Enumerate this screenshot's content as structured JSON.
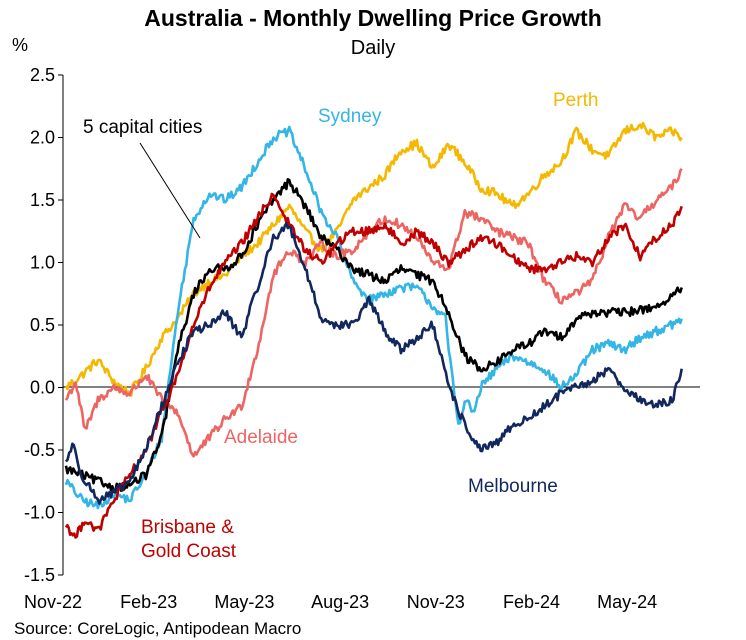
{
  "chart_data": {
    "type": "line",
    "title": "Australia - Monthly Dwelling Price Growth",
    "subtitle": "Daily",
    "ylabel": "%",
    "source": "Source: CoreLogic, Antipodean Macro",
    "ylim": [
      -1.5,
      2.5
    ],
    "yticks": [
      "2.5",
      "2.0",
      "1.5",
      "1.0",
      "0.5",
      "0.0",
      "-0.5",
      "-1.0",
      "-1.5"
    ],
    "x_ticklabels": [
      "Nov-22",
      "Feb-23",
      "May-23",
      "Aug-23",
      "Nov-23",
      "Feb-24",
      "May-24"
    ],
    "x_months": [
      "Nov-22",
      "Dec-22",
      "Jan-23",
      "Feb-23",
      "Mar-23",
      "Apr-23",
      "May-23",
      "Jun-23",
      "Jul-23",
      "Aug-23",
      "Sep-23",
      "Oct-23",
      "Nov-23",
      "Dec-23",
      "Jan-24",
      "Feb-24",
      "Mar-24",
      "Apr-24",
      "May-24",
      "Jun-24"
    ],
    "xlim_month_index": [
      0,
      19.4
    ],
    "series": [
      {
        "name": "Perth",
        "color": "#F5B800",
        "x": [
          0,
          0.5,
          1,
          1.5,
          2,
          2.5,
          3,
          3.5,
          4,
          4.5,
          5,
          5.5,
          6,
          6.5,
          7,
          7.5,
          8,
          8.5,
          9,
          9.5,
          10,
          10.5,
          11,
          11.5,
          12,
          12.5,
          13,
          13.5,
          14,
          14.5,
          15,
          15.5,
          16,
          16.5,
          17,
          17.5,
          18,
          18.5,
          19,
          19.3
        ],
        "values": [
          0.0,
          0.1,
          0.22,
          0.05,
          -0.05,
          0.15,
          0.4,
          0.55,
          0.75,
          0.85,
          0.9,
          1.05,
          1.15,
          1.3,
          1.45,
          1.25,
          1.1,
          1.25,
          1.5,
          1.6,
          1.7,
          1.9,
          1.95,
          1.75,
          1.95,
          1.8,
          1.6,
          1.55,
          1.45,
          1.55,
          1.7,
          1.8,
          2.05,
          1.9,
          1.85,
          2.05,
          2.1,
          2.0,
          2.05,
          2.0
        ]
      },
      {
        "name": "Sydney",
        "color": "#33B5E5",
        "x": [
          0,
          0.5,
          1,
          1.5,
          2,
          2.5,
          3,
          3.5,
          4,
          4.5,
          5,
          5.5,
          6,
          6.5,
          7,
          7.5,
          8,
          8.5,
          9,
          9.5,
          10,
          10.5,
          11,
          11.5,
          11.9,
          12,
          12.3,
          12.5,
          12.8,
          13,
          13.5,
          14,
          14.5,
          15,
          15.5,
          16,
          16.5,
          17,
          17.5,
          18,
          18.5,
          19,
          19.3
        ],
        "values": [
          -0.75,
          -0.9,
          -0.95,
          -0.85,
          -0.9,
          -0.7,
          -0.4,
          0.6,
          1.35,
          1.55,
          1.5,
          1.6,
          1.8,
          2.0,
          2.05,
          1.75,
          1.4,
          1.2,
          0.85,
          0.7,
          0.75,
          0.8,
          0.8,
          0.65,
          0.55,
          0.3,
          -0.3,
          -0.1,
          -0.2,
          0.0,
          0.15,
          0.25,
          0.2,
          0.15,
          0.0,
          0.1,
          0.3,
          0.35,
          0.3,
          0.4,
          0.45,
          0.5,
          0.55
        ]
      },
      {
        "name": "Adelaide",
        "color": "#EC6562",
        "x": [
          0,
          0.3,
          0.6,
          1,
          1.5,
          2,
          2.5,
          3,
          3.5,
          4,
          4.5,
          5,
          5.5,
          6,
          6.5,
          7,
          7.5,
          8,
          8.5,
          9,
          9.5,
          10,
          10.5,
          11,
          11.5,
          12,
          12.5,
          13,
          13.5,
          14,
          14.5,
          15,
          15.5,
          16,
          16.5,
          17,
          17.5,
          18,
          18.5,
          19,
          19.3
        ],
        "values": [
          -0.1,
          0.05,
          -0.35,
          -0.1,
          0.0,
          -0.05,
          0.1,
          -0.1,
          -0.2,
          -0.55,
          -0.4,
          -0.25,
          -0.15,
          0.3,
          0.9,
          1.1,
          1.0,
          1.15,
          1.05,
          1.1,
          1.25,
          1.35,
          1.3,
          1.2,
          1.0,
          0.95,
          1.4,
          1.35,
          1.25,
          1.2,
          1.15,
          0.85,
          0.7,
          0.75,
          0.85,
          1.2,
          1.45,
          1.35,
          1.5,
          1.6,
          1.75
        ]
      },
      {
        "name": "5 capital cities",
        "color": "#000000",
        "x": [
          0,
          0.5,
          1,
          1.5,
          2,
          2.5,
          3,
          3.5,
          4,
          4.5,
          5,
          5.5,
          6,
          6.5,
          7,
          7.5,
          8,
          8.5,
          9,
          9.5,
          10,
          10.5,
          11,
          11.5,
          12,
          12.5,
          13,
          13.5,
          14,
          14.5,
          15,
          15.5,
          16,
          16.5,
          17,
          17.5,
          18,
          18.5,
          19,
          19.3
        ],
        "values": [
          -0.65,
          -0.7,
          -0.75,
          -0.8,
          -0.78,
          -0.7,
          -0.4,
          0.3,
          0.75,
          0.95,
          0.95,
          1.05,
          1.3,
          1.5,
          1.65,
          1.45,
          1.2,
          1.1,
          0.95,
          0.9,
          0.85,
          0.95,
          0.9,
          0.85,
          0.6,
          0.25,
          0.15,
          0.2,
          0.3,
          0.35,
          0.45,
          0.4,
          0.55,
          0.6,
          0.6,
          0.6,
          0.62,
          0.65,
          0.72,
          0.8
        ]
      },
      {
        "name": "Brisbane & Gold Coast",
        "color": "#C00000",
        "x": [
          0,
          0.3,
          0.6,
          1,
          1.5,
          2,
          2.5,
          3,
          3.5,
          4,
          4.5,
          5,
          5.5,
          6,
          6.5,
          7,
          7.5,
          8,
          8.5,
          9,
          9.5,
          10,
          10.5,
          11,
          11.5,
          12,
          12.5,
          13,
          13.5,
          14,
          14.5,
          15,
          15.5,
          16,
          16.5,
          17,
          17.5,
          18,
          18.5,
          19,
          19.3
        ],
        "values": [
          -1.1,
          -1.2,
          -1.05,
          -1.15,
          -0.9,
          -0.7,
          -0.5,
          -0.2,
          0.1,
          0.5,
          0.8,
          1.0,
          1.15,
          1.35,
          1.55,
          1.3,
          1.1,
          1.0,
          1.15,
          1.25,
          1.25,
          1.3,
          1.15,
          1.25,
          1.15,
          1.0,
          1.1,
          1.2,
          1.15,
          1.05,
          0.95,
          0.95,
          1.0,
          1.05,
          1.0,
          1.2,
          1.3,
          1.05,
          1.2,
          1.3,
          1.45
        ]
      },
      {
        "name": "Melbourne",
        "color": "#12275E",
        "x": [
          0,
          0.2,
          0.5,
          1,
          1.5,
          2,
          2.5,
          3,
          3.5,
          4,
          4.5,
          5,
          5.5,
          6,
          6.5,
          7,
          7.5,
          8,
          8.5,
          9,
          9.5,
          10,
          10.5,
          11,
          11.5,
          12,
          12.5,
          13,
          13.5,
          14,
          14.5,
          15,
          15.5,
          16,
          16.5,
          17,
          17.5,
          18,
          18.5,
          19,
          19.3
        ],
        "values": [
          -0.6,
          -0.45,
          -0.7,
          -0.9,
          -0.85,
          -0.75,
          -0.5,
          -0.15,
          0.2,
          0.45,
          0.5,
          0.6,
          0.4,
          0.8,
          1.2,
          1.3,
          0.95,
          0.55,
          0.5,
          0.5,
          0.7,
          0.45,
          0.3,
          0.4,
          0.5,
          0.0,
          -0.3,
          -0.5,
          -0.45,
          -0.3,
          -0.25,
          -0.15,
          -0.05,
          0.0,
          0.05,
          0.15,
          0.0,
          -0.1,
          -0.15,
          -0.1,
          0.15
        ]
      }
    ],
    "annotations": [
      {
        "text": "Sydney",
        "series": "Sydney"
      },
      {
        "text": "Perth",
        "series": "Perth"
      },
      {
        "text": "5 capital cities",
        "series": "5 capital cities"
      },
      {
        "text": "Adelaide",
        "series": "Adelaide"
      },
      {
        "text": "Melbourne",
        "series": "Melbourne"
      },
      {
        "text": "Brisbane &",
        "series": "Brisbane & Gold Coast"
      },
      {
        "text": "Gold Coast",
        "series": "Brisbane & Gold Coast"
      }
    ]
  }
}
